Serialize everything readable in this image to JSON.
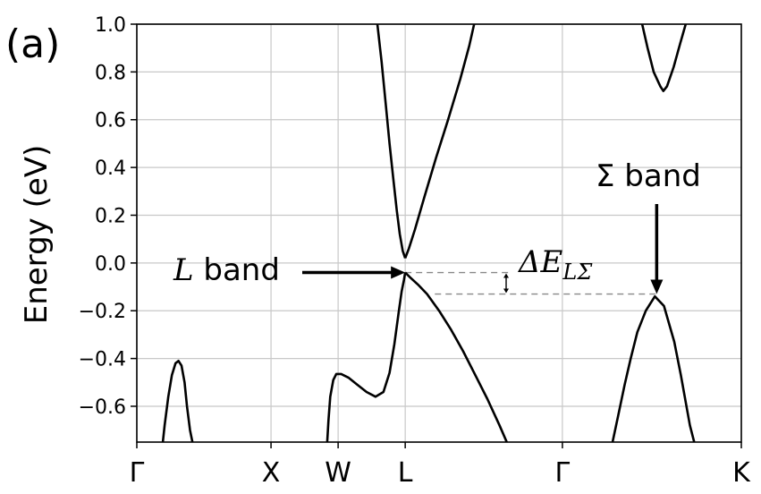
{
  "panel_label": "(a)",
  "chart_data": {
    "type": "line",
    "title": "",
    "xlabel": "",
    "ylabel": "Energy (eV)",
    "ylim": [
      -0.75,
      1.0
    ],
    "yticks": [
      -0.6,
      -0.4,
      -0.2,
      0.0,
      0.2,
      0.4,
      0.6,
      0.8,
      1.0
    ],
    "ytick_labels": [
      "−0.6",
      "−0.4",
      "−0.2",
      "0.0",
      "0.2",
      "0.4",
      "0.6",
      "0.8",
      "1.0"
    ],
    "xlim": [
      0,
      1
    ],
    "xticks": [
      0,
      0.222,
      0.333,
      0.444,
      0.704,
      1.0
    ],
    "xtick_labels": [
      "Γ",
      "X",
      "W",
      "L",
      "Γ",
      "K"
    ],
    "grid": true,
    "series": [
      {
        "x": [
          0.043,
          0.046,
          0.052,
          0.058,
          0.064,
          0.069,
          0.074,
          0.079,
          0.083,
          0.088,
          0.092
        ],
        "y": [
          -0.75,
          -0.68,
          -0.56,
          -0.47,
          -0.42,
          -0.41,
          -0.43,
          -0.5,
          -0.6,
          -0.7,
          -0.75
        ]
      },
      {
        "x": [
          0.315,
          0.317,
          0.32,
          0.325,
          0.33,
          0.338,
          0.35,
          0.365,
          0.38,
          0.395,
          0.408,
          0.418,
          0.426,
          0.433,
          0.438,
          0.442,
          0.444
        ],
        "y": [
          -0.75,
          -0.66,
          -0.56,
          -0.49,
          -0.465,
          -0.465,
          -0.48,
          -0.51,
          -0.54,
          -0.56,
          -0.54,
          -0.46,
          -0.34,
          -0.21,
          -0.12,
          -0.07,
          -0.04
        ]
      },
      {
        "x": [
          0.444,
          0.452,
          0.465,
          0.48,
          0.5,
          0.52,
          0.54,
          0.56,
          0.58,
          0.6,
          0.612
        ],
        "y": [
          -0.04,
          -0.06,
          -0.09,
          -0.13,
          -0.2,
          -0.28,
          -0.37,
          -0.47,
          -0.57,
          -0.68,
          -0.75
        ]
      },
      {
        "x": [
          0.398,
          0.405,
          0.412,
          0.418,
          0.424,
          0.43,
          0.435,
          0.44,
          0.444
        ],
        "y": [
          1.0,
          0.84,
          0.66,
          0.5,
          0.36,
          0.22,
          0.12,
          0.05,
          0.02
        ]
      },
      {
        "x": [
          0.444,
          0.45,
          0.46,
          0.475,
          0.495,
          0.515,
          0.535,
          0.55,
          0.558
        ],
        "y": [
          0.02,
          0.06,
          0.14,
          0.27,
          0.44,
          0.6,
          0.77,
          0.91,
          1.0
        ]
      },
      {
        "x": [
          0.787,
          0.797,
          0.807,
          0.817,
          0.828,
          0.842,
          0.857,
          0.872,
          0.889,
          0.9,
          0.915,
          0.922
        ],
        "y": [
          -0.75,
          -0.63,
          -0.51,
          -0.4,
          -0.29,
          -0.2,
          -0.14,
          -0.18,
          -0.33,
          -0.47,
          -0.68,
          -0.75
        ]
      },
      {
        "x": [
          0.836,
          0.845,
          0.855,
          0.866,
          0.871,
          0.877,
          0.888,
          0.899,
          0.908
        ],
        "y": [
          1.0,
          0.9,
          0.8,
          0.74,
          0.72,
          0.74,
          0.82,
          0.92,
          1.0
        ]
      }
    ],
    "reference_lines": [
      {
        "y": -0.04,
        "x_from": 0.444,
        "x_to": 0.615
      },
      {
        "y": -0.13,
        "x_from": 0.493,
        "x_to": 0.86
      }
    ],
    "annotations": {
      "l_band": {
        "prefix": "L",
        "text": " band",
        "target": [
          0.444,
          -0.04
        ]
      },
      "sigma_band": {
        "text": "Σ band",
        "target": [
          0.86,
          -0.13
        ]
      },
      "delta": {
        "base": "ΔE",
        "sub": "LΣ"
      }
    }
  }
}
